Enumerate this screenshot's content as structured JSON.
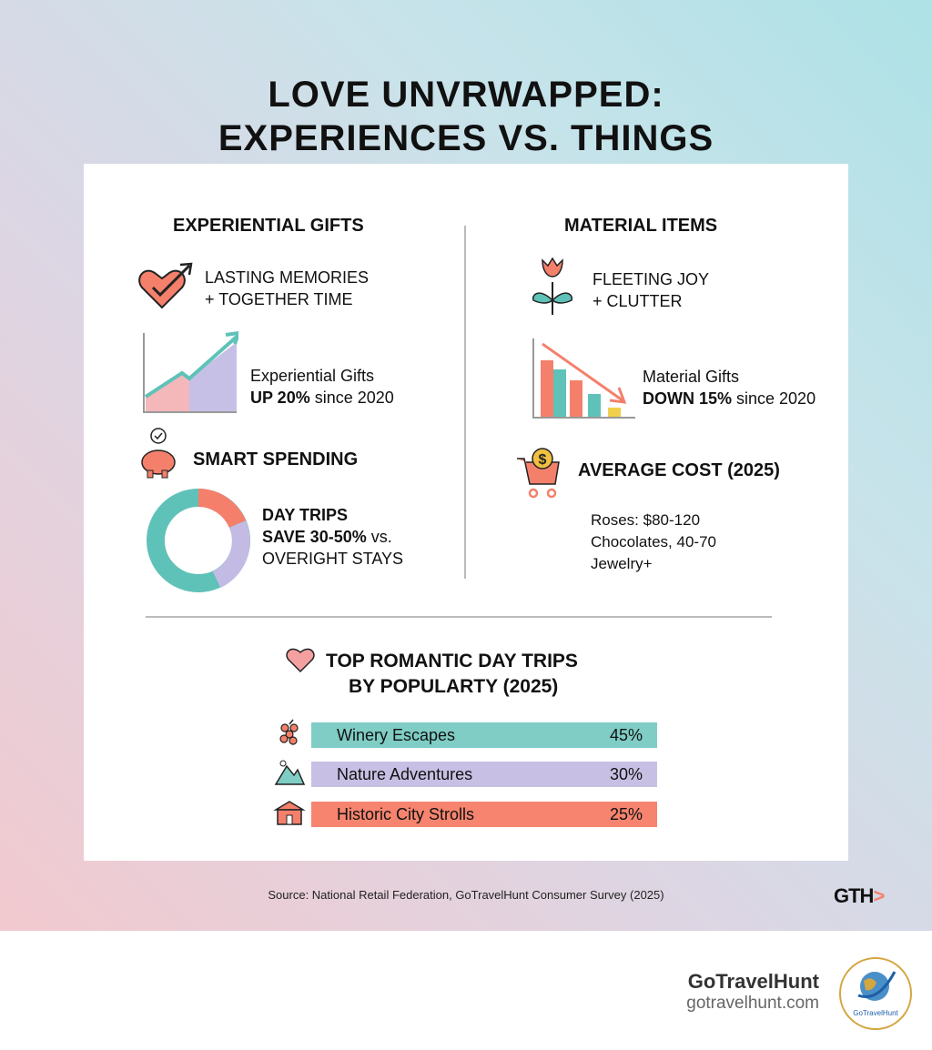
{
  "title_line1": "LOVE UNVRWAPPED:",
  "title_line2": "EXPERIENCES VS. THINGS",
  "left": {
    "heading": "EXPERIENTIAL GIFTS",
    "memo1": "LASTING MEMORIES",
    "memo2": "+ TOGETHER TIME",
    "stat1": "Experiential Gifts",
    "stat2_bold": "UP 20%",
    "stat2_rest": " since 2020",
    "spend": "SMART SPENDING",
    "day1": "DAY TRIPS",
    "day2_bold": "SAVE 30-50%",
    "day2_rest": " vs.",
    "day3": "OVERIGHT STAYS"
  },
  "right": {
    "heading": "MATERIAL ITEMS",
    "memo1": "FLEETING JOY",
    "memo2": "+ CLUTTER",
    "stat1": "Material Gifts",
    "stat2_bold": "DOWN 15%",
    "stat2_rest": " since 2020",
    "cost": "AVERAGE COST (2025)",
    "costs": [
      "Roses: $80-120",
      "Chocolates, 40-70",
      "Jewelry+"
    ]
  },
  "trips": {
    "heading1": "TOP ROMANTIC DAY TRIPS",
    "heading2": "BY POPULARTY (2025)",
    "items": [
      {
        "label": "Winery Escapes",
        "value": "45%",
        "pct": 45,
        "color": "#7fcdc5",
        "icon": "grapes-icon"
      },
      {
        "label": "Nature Adventures",
        "value": "30%",
        "pct": 30,
        "color": "#c8c0e4",
        "icon": "mountain-icon"
      },
      {
        "label": "Historic City Strolls",
        "value": "25%",
        "pct": 25,
        "color": "#f6846f",
        "icon": "building-icon"
      }
    ]
  },
  "source": "Source: National Retail Federation, GoTravelHunt Consumer Survey (2025)",
  "corner_logo": "GTH",
  "brand": {
    "name": "GoTravelHunt",
    "url": "gotravelhunt.com",
    "logo_text": "GoTravelHunt"
  },
  "colors": {
    "teal": "#5fc2b8",
    "coral": "#f4806c",
    "lavender": "#c3bbe3",
    "yellow": "#f0d04a"
  }
}
